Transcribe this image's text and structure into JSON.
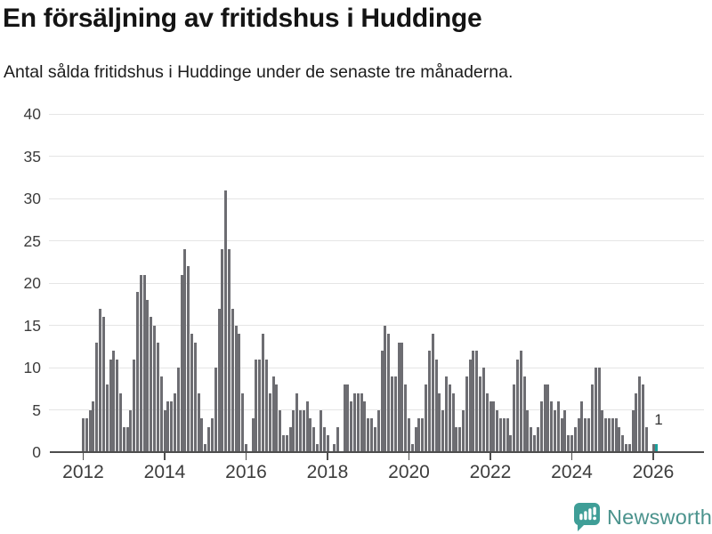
{
  "title": "En försäljning av fritidshus i Huddinge",
  "subtitle": "Antal sålda fritidshus i Huddinge under de senaste tre månaderna.",
  "footer": {
    "brand": "Newsworthy",
    "logo_icon": "newsworthy-chart-bubble-icon"
  },
  "colors": {
    "bar": "#6d6d72",
    "highlight": "#1aa09c",
    "axis": "#4d4d4d",
    "grid": "#e5e5e5",
    "tick_text": "#3d3d3d",
    "title_text": "#141414",
    "logo_teal": "#3f9e97",
    "brand_text": "#4b938d"
  },
  "chart_data": {
    "type": "bar",
    "title": "En försäljning av fritidshus i Huddinge",
    "subtitle": "Antal sålda fritidshus i Huddinge under de senaste tre månaderna.",
    "unit": "antal sålda fritidshus (rullande 3 månader)",
    "x_start": "2012-01",
    "x_end": "2026-02",
    "x_tick_labels": [
      "2012",
      "2014",
      "2016",
      "2018",
      "2020",
      "2022",
      "2024",
      "2026"
    ],
    "y_ticks": [
      0,
      5,
      10,
      15,
      20,
      25,
      30,
      35,
      40
    ],
    "ylim": [
      0,
      40
    ],
    "grid": "horizontal",
    "legend": "none",
    "highlight_last": true,
    "last_value_label": "1",
    "values": [
      4,
      4,
      5,
      6,
      13,
      17,
      16,
      8,
      11,
      12,
      11,
      7,
      3,
      3,
      5,
      11,
      19,
      21,
      21,
      18,
      16,
      15,
      13,
      9,
      5,
      6,
      6,
      7,
      10,
      21,
      24,
      22,
      14,
      13,
      7,
      4,
      1,
      3,
      4,
      10,
      17,
      24,
      31,
      24,
      17,
      15,
      14,
      7,
      1,
      0,
      4,
      11,
      11,
      14,
      11,
      7,
      9,
      8,
      5,
      2,
      2,
      3,
      5,
      7,
      5,
      5,
      6,
      4,
      3,
      1,
      5,
      3,
      2,
      0,
      1,
      3,
      0,
      8,
      8,
      6,
      7,
      7,
      7,
      6,
      4,
      4,
      3,
      5,
      12,
      15,
      14,
      9,
      9,
      13,
      13,
      8,
      4,
      1,
      3,
      4,
      4,
      8,
      12,
      14,
      11,
      7,
      5,
      9,
      8,
      7,
      3,
      3,
      5,
      9,
      11,
      12,
      12,
      9,
      10,
      7,
      6,
      6,
      5,
      4,
      4,
      4,
      2,
      8,
      11,
      12,
      9,
      5,
      3,
      2,
      3,
      6,
      8,
      8,
      6,
      5,
      6,
      4,
      5,
      2,
      2,
      3,
      4,
      6,
      4,
      4,
      8,
      10,
      10,
      5,
      4,
      4,
      4,
      4,
      3,
      2,
      1,
      1,
      5,
      7,
      9,
      8,
      3,
      0,
      1,
      1
    ]
  }
}
